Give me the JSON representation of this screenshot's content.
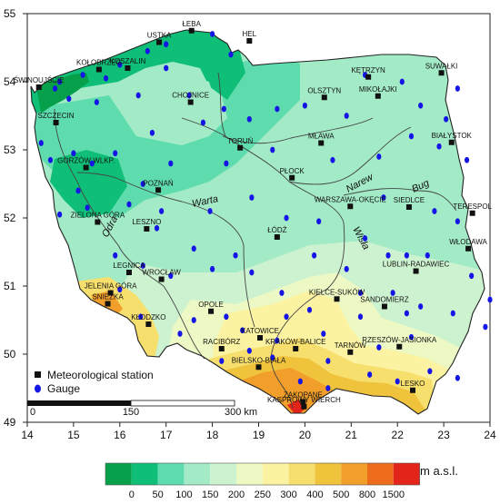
{
  "map": {
    "x_ticks": [
      "14",
      "15",
      "16",
      "17",
      "18",
      "19",
      "20",
      "21",
      "22",
      "23",
      "24"
    ],
    "y_ticks": [
      "55",
      "54",
      "53",
      "52",
      "51",
      "50",
      "49"
    ],
    "legend": {
      "station_label": "Meteorological station",
      "gauge_label": "Gauge"
    },
    "scale_bar": {
      "zero": "0",
      "mid": "150",
      "end": "300 km"
    },
    "elevation_scale": {
      "unit": "m a.s.l.",
      "breaks": [
        "0",
        "50",
        "100",
        "150",
        "200",
        "250",
        "300",
        "400",
        "500",
        "800",
        "1500"
      ],
      "colors": [
        "#06a04a",
        "#0fbf78",
        "#5fdcae",
        "#a3eac7",
        "#cdf2cf",
        "#edf9c4",
        "#fbf2a2",
        "#f7df6e",
        "#f0c33c",
        "#f19e2b",
        "#ec6c1c",
        "#e3241a"
      ]
    },
    "rivers": [
      "Narew",
      "Bug",
      "Warta",
      "Wisła",
      "Odra"
    ],
    "stations": [
      {
        "name": "ŁEBA",
        "lon": 17.55,
        "lat": 54.75
      },
      {
        "name": "HEL",
        "lon": 18.8,
        "lat": 54.6
      },
      {
        "name": "USTKA",
        "lon": 16.85,
        "lat": 54.58
      },
      {
        "name": "KOSZALIN",
        "lon": 16.17,
        "lat": 54.2
      },
      {
        "name": "KOŁOBRZEG",
        "lon": 15.55,
        "lat": 54.18
      },
      {
        "name": "ŚWINOUJŚCIE",
        "lon": 14.25,
        "lat": 53.92
      },
      {
        "name": "CHOJNICE",
        "lon": 17.53,
        "lat": 53.7
      },
      {
        "name": "SZCZECIN",
        "lon": 14.62,
        "lat": 53.4
      },
      {
        "name": "KĘTRZYN",
        "lon": 21.37,
        "lat": 54.07
      },
      {
        "name": "SUWAŁKI",
        "lon": 22.95,
        "lat": 54.13
      },
      {
        "name": "OLSZTYN",
        "lon": 20.42,
        "lat": 53.77
      },
      {
        "name": "MIKOŁAJKI",
        "lon": 21.58,
        "lat": 53.79
      },
      {
        "name": "TORUŃ",
        "lon": 18.6,
        "lat": 53.03
      },
      {
        "name": "MŁAWA",
        "lon": 20.35,
        "lat": 53.1
      },
      {
        "name": "BIAŁYSTOK",
        "lon": 23.17,
        "lat": 53.11
      },
      {
        "name": "GORZÓW WLKP.",
        "lon": 15.27,
        "lat": 52.74
      },
      {
        "name": "POZNAŃ",
        "lon": 16.83,
        "lat": 52.41
      },
      {
        "name": "PŁOCK",
        "lon": 19.72,
        "lat": 52.59
      },
      {
        "name": "ZIELONA GÓRA",
        "lon": 15.52,
        "lat": 51.94
      },
      {
        "name": "LESZNO",
        "lon": 16.58,
        "lat": 51.84
      },
      {
        "name": "WARSZAWA-OKĘCIE",
        "lon": 20.98,
        "lat": 52.17
      },
      {
        "name": "SIEDLCE",
        "lon": 22.25,
        "lat": 52.16
      },
      {
        "name": "TERESPOL",
        "lon": 23.62,
        "lat": 52.07
      },
      {
        "name": "ŁÓDŹ",
        "lon": 19.4,
        "lat": 51.72
      },
      {
        "name": "WŁODAWA",
        "lon": 23.53,
        "lat": 51.55
      },
      {
        "name": "LEGNICA",
        "lon": 16.2,
        "lat": 51.2
      },
      {
        "name": "WROCŁAW",
        "lon": 16.9,
        "lat": 51.1
      },
      {
        "name": "LUBLIN-RADAWIEC",
        "lon": 22.4,
        "lat": 51.22
      },
      {
        "name": "JELENIA GÓRA",
        "lon": 15.8,
        "lat": 50.9
      },
      {
        "name": "KIELCE-SUKÓW",
        "lon": 20.69,
        "lat": 50.81
      },
      {
        "name": "SNIEŻKA",
        "lon": 15.74,
        "lat": 50.74
      },
      {
        "name": "OPOLE",
        "lon": 17.97,
        "lat": 50.63
      },
      {
        "name": "SANDOMIERZ",
        "lon": 21.72,
        "lat": 50.7
      },
      {
        "name": "KŁODZKO",
        "lon": 16.62,
        "lat": 50.44
      },
      {
        "name": "KATOWICE",
        "lon": 19.03,
        "lat": 50.24
      },
      {
        "name": "RACIBÓRZ",
        "lon": 18.2,
        "lat": 50.08
      },
      {
        "name": "KRAKÓW-BALICE",
        "lon": 19.8,
        "lat": 50.08
      },
      {
        "name": "TARNÓW",
        "lon": 20.98,
        "lat": 50.03
      },
      {
        "name": "RZESZÓW-JASIONKA",
        "lon": 22.04,
        "lat": 50.11
      },
      {
        "name": "BIELSKO-BIAŁA",
        "lon": 19.0,
        "lat": 49.81
      },
      {
        "name": "LESKO",
        "lon": 22.33,
        "lat": 49.47
      },
      {
        "name": "ZAKOPANE",
        "lon": 19.96,
        "lat": 49.3
      },
      {
        "name": "KASPROWY WIERCH",
        "lon": 19.98,
        "lat": 49.23
      }
    ],
    "gauges": [
      [
        14.6,
        53.9
      ],
      [
        14.7,
        54.0
      ],
      [
        15.2,
        54.1
      ],
      [
        15.7,
        54.05
      ],
      [
        16.0,
        54.25
      ],
      [
        16.6,
        54.45
      ],
      [
        17.0,
        54.55
      ],
      [
        18.0,
        54.7
      ],
      [
        18.4,
        54.4
      ],
      [
        17.0,
        54.2
      ],
      [
        14.9,
        53.75
      ],
      [
        15.5,
        53.7
      ],
      [
        16.4,
        53.8
      ],
      [
        17.5,
        53.8
      ],
      [
        18.25,
        53.6
      ],
      [
        14.3,
        53.1
      ],
      [
        14.5,
        52.85
      ],
      [
        15.0,
        52.95
      ],
      [
        15.4,
        52.8
      ],
      [
        15.9,
        52.95
      ],
      [
        16.7,
        53.25
      ],
      [
        17.8,
        53.4
      ],
      [
        18.8,
        53.45
      ],
      [
        19.4,
        53.6
      ],
      [
        20.0,
        53.65
      ],
      [
        20.9,
        53.5
      ],
      [
        21.3,
        54.1
      ],
      [
        22.1,
        54.0
      ],
      [
        23.3,
        53.9
      ],
      [
        22.5,
        53.65
      ],
      [
        23.05,
        53.45
      ],
      [
        22.3,
        53.2
      ],
      [
        22.9,
        53.05
      ],
      [
        23.5,
        52.85
      ],
      [
        21.6,
        52.9
      ],
      [
        20.6,
        52.85
      ],
      [
        19.3,
        53.0
      ],
      [
        18.3,
        52.8
      ],
      [
        17.1,
        52.8
      ],
      [
        16.5,
        52.5
      ],
      [
        15.1,
        52.4
      ],
      [
        14.7,
        52.05
      ],
      [
        15.3,
        52.15
      ],
      [
        16.2,
        52.2
      ],
      [
        16.9,
        52.1
      ],
      [
        17.95,
        52.1
      ],
      [
        18.85,
        52.3
      ],
      [
        19.6,
        52.0
      ],
      [
        20.3,
        51.95
      ],
      [
        21.7,
        52.3
      ],
      [
        22.8,
        52.1
      ],
      [
        23.3,
        51.95
      ],
      [
        21.3,
        51.7
      ],
      [
        21.8,
        51.45
      ],
      [
        22.2,
        51.45
      ],
      [
        22.65,
        51.45
      ],
      [
        23.6,
        51.15
      ],
      [
        20.2,
        51.45
      ],
      [
        18.5,
        51.45
      ],
      [
        17.6,
        51.55
      ],
      [
        16.8,
        51.85
      ],
      [
        15.9,
        51.45
      ],
      [
        16.5,
        51.3
      ],
      [
        17.1,
        51.15
      ],
      [
        18.0,
        51.25
      ],
      [
        18.85,
        51.2
      ],
      [
        20.9,
        51.25
      ],
      [
        19.5,
        50.9
      ],
      [
        20.1,
        50.65
      ],
      [
        21.2,
        50.55
      ],
      [
        22.2,
        50.6
      ],
      [
        16.0,
        50.95
      ],
      [
        16.45,
        50.55
      ],
      [
        17.6,
        50.5
      ],
      [
        18.3,
        50.55
      ],
      [
        18.65,
        50.35
      ],
      [
        19.6,
        50.55
      ],
      [
        21.9,
        50.9
      ],
      [
        22.5,
        50.7
      ],
      [
        23.2,
        50.6
      ],
      [
        24.0,
        50.8
      ],
      [
        19.4,
        50.2
      ],
      [
        20.4,
        50.3
      ],
      [
        21.6,
        50.1
      ],
      [
        22.3,
        50.25
      ],
      [
        18.8,
        50.05
      ],
      [
        19.3,
        49.95
      ],
      [
        20.5,
        49.9
      ],
      [
        21.4,
        49.7
      ],
      [
        22.0,
        49.6
      ],
      [
        22.7,
        49.75
      ],
      [
        23.3,
        49.65
      ],
      [
        19.9,
        49.6
      ],
      [
        20.5,
        49.5
      ],
      [
        18.2,
        49.9
      ],
      [
        17.3,
        50.3
      ],
      [
        23.9,
        50.4
      ],
      [
        21.2,
        50.9
      ]
    ]
  }
}
